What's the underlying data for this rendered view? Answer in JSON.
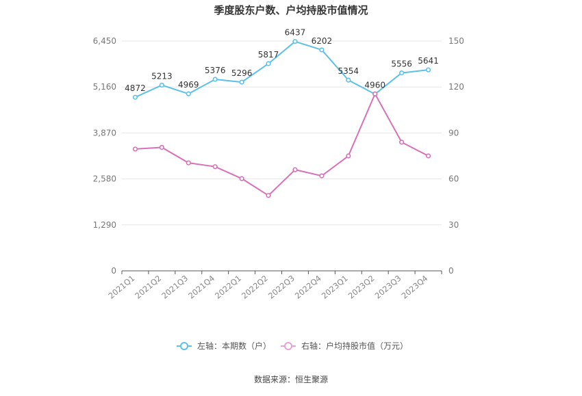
{
  "chart_data": {
    "type": "line",
    "title": "季度股东户数、户均持股市值情况",
    "categories": [
      "2021Q1",
      "2021Q2",
      "2021Q3",
      "2021Q4",
      "2022Q1",
      "2022Q2",
      "2022Q3",
      "2022Q4",
      "2023Q1",
      "2023Q2",
      "2023Q3",
      "2023Q4"
    ],
    "series": [
      {
        "name": "左轴：本期数（户）",
        "axis": "left",
        "color": "#5bc0eb",
        "values": [
          4872,
          5213,
          4969,
          5376,
          5296,
          5817,
          6437,
          6202,
          5354,
          4960,
          5556,
          5641
        ],
        "labels": [
          "4872",
          "5213",
          "4969",
          "5376",
          "5296",
          "5817",
          "6437",
          "6202",
          "5354",
          "4960",
          "5556",
          "5641"
        ]
      },
      {
        "name": "右轴：户均持股市值（万元）",
        "axis": "right",
        "color": "#d870b8",
        "values": [
          79.5,
          80.6,
          70.5,
          68.0,
          60.2,
          49.2,
          66.0,
          62.0,
          75.0,
          115.5,
          84.0,
          75.0
        ]
      }
    ],
    "y_left": {
      "min": 0,
      "max": 6450,
      "ticks": [
        0,
        1290,
        2580,
        3870,
        5160,
        6450
      ],
      "tick_labels": [
        "0",
        "1,290",
        "2,580",
        "3,870",
        "5,160",
        "6,450"
      ]
    },
    "y_right": {
      "min": 0,
      "max": 150,
      "ticks": [
        0,
        30,
        60,
        90,
        120,
        150
      ],
      "tick_labels": [
        "0",
        "30",
        "60",
        "90",
        "120",
        "150"
      ]
    },
    "grid": true,
    "legend_position": "bottom",
    "source": "数据来源：恒生聚源"
  }
}
